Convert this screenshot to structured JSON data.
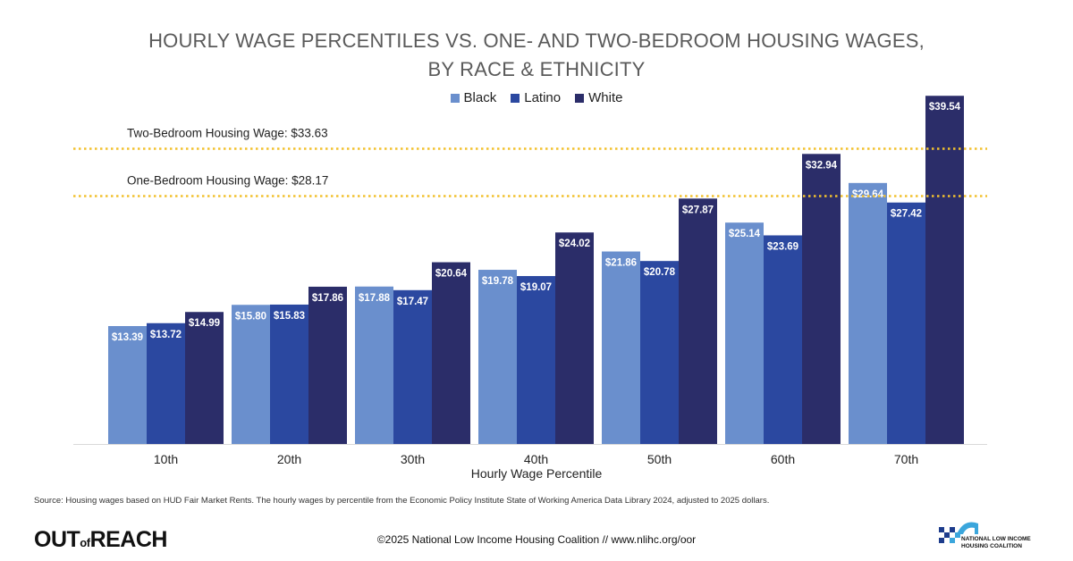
{
  "chart_data": {
    "type": "bar",
    "title_lines": [
      "HOURLY WAGE PERCENTILES VS. ONE- AND TWO-BEDROOM HOUSING WAGES,",
      "BY RACE & ETHNICITY"
    ],
    "xlabel": "Hourly Wage Percentile",
    "ylabel": "",
    "ylim": [
      0,
      42
    ],
    "categories": [
      "10th",
      "20th",
      "30th",
      "40th",
      "50th",
      "60th",
      "70th"
    ],
    "series": [
      {
        "name": "Black",
        "color": "#6a8fcd",
        "values": [
          13.39,
          15.8,
          17.88,
          19.78,
          21.86,
          25.14,
          29.64
        ],
        "labels": [
          "$13.39",
          "$15.80",
          "$17.88",
          "$19.78",
          "$21.86",
          "$25.14",
          "$29.64"
        ]
      },
      {
        "name": "Latino",
        "color": "#2b48a0",
        "values": [
          13.72,
          15.83,
          17.47,
          19.07,
          20.78,
          23.69,
          27.42
        ],
        "labels": [
          "$13.72",
          "$15.83",
          "$17.47",
          "$19.07",
          "$20.78",
          "$23.69",
          "$27.42"
        ]
      },
      {
        "name": "White",
        "color": "#2b2d69",
        "values": [
          14.99,
          17.86,
          20.64,
          24.02,
          27.87,
          32.94,
          39.54
        ],
        "labels": [
          "$14.99",
          "$17.86",
          "$20.64",
          "$24.02",
          "$27.87",
          "$32.94",
          "$39.54"
        ]
      }
    ],
    "reference_lines": [
      {
        "label": "Two-Bedroom Housing Wage: $33.63",
        "value": 33.63,
        "color": "#f2c12e"
      },
      {
        "label": "One-Bedroom Housing Wage: $28.17",
        "value": 28.17,
        "color": "#f2c12e"
      }
    ],
    "legend_position": "top-center",
    "grid": false
  },
  "source": "Source: Housing wages based on HUD Fair Market Rents. The hourly wages by percentile from the Economic Policy Institute State of Working America Data Library 2024, adjusted to 2025 dollars.",
  "footer": {
    "logo_out": "OUT",
    "logo_of": "of",
    "logo_reach": "REACH",
    "copyright": "©2025 National Low Income Housing Coalition // www.nlihc.org/oor",
    "org_line1": "NATIONAL LOW INCOME",
    "org_line2": "HOUSING COALITION"
  }
}
